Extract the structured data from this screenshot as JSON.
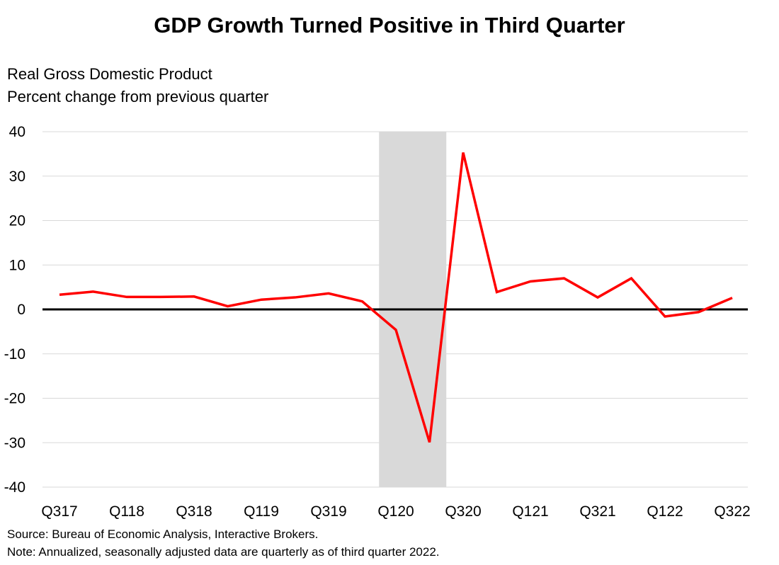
{
  "title": "GDP Growth Turned Positive in Third Quarter",
  "subtitle_line1": "Real Gross Domestic Product",
  "subtitle_line2": "Percent change from previous quarter",
  "source": "Source: Bureau of Economic Analysis, Interactive Brokers.",
  "note": "Note: Annualized, seasonally adjusted data are quarterly as of third quarter 2022.",
  "chart_data": {
    "type": "line",
    "x": [
      "Q317",
      "Q417",
      "Q118",
      "Q218",
      "Q318",
      "Q418",
      "Q119",
      "Q219",
      "Q319",
      "Q419",
      "Q120",
      "Q220",
      "Q320",
      "Q420",
      "Q121",
      "Q221",
      "Q321",
      "Q421",
      "Q122",
      "Q222",
      "Q322"
    ],
    "x_tick_labels": [
      "Q317",
      "Q118",
      "Q318",
      "Q119",
      "Q319",
      "Q120",
      "Q320",
      "Q121",
      "Q321",
      "Q122",
      "Q322"
    ],
    "series": [
      {
        "values": [
          3.3,
          4.0,
          2.8,
          2.8,
          2.9,
          0.7,
          2.2,
          2.7,
          3.6,
          1.8,
          -4.6,
          -29.9,
          35.3,
          3.9,
          6.3,
          7.0,
          2.7,
          7.0,
          -1.6,
          -0.6,
          2.6
        ]
      }
    ],
    "ylim": [
      -40,
      40
    ],
    "y_ticks": [
      -40,
      -30,
      -20,
      -10,
      0,
      10,
      20,
      30,
      40
    ],
    "grid": true,
    "shaded_region": {
      "from": "Q120",
      "to": "Q220",
      "meaning": "recession"
    },
    "zero_line": true,
    "colors": {
      "line": "#ff0000",
      "shade": "#d9d9d9",
      "grid": "#d9d9d9",
      "zero": "#000000"
    }
  }
}
